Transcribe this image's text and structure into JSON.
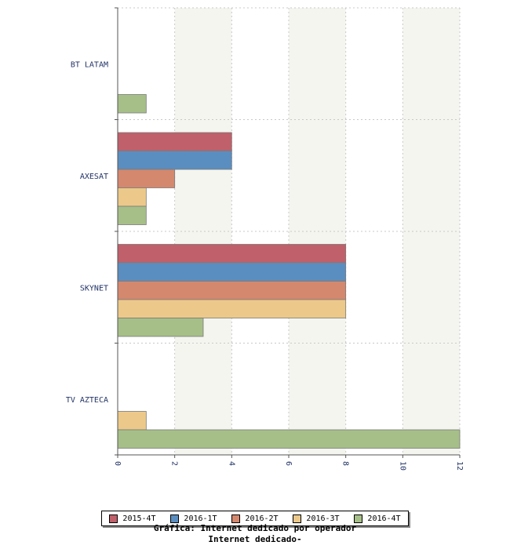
{
  "chart_data": {
    "type": "bar",
    "orientation": "horizontal",
    "title": "Gráfica: Internet dedicado por operador",
    "subtitle": "Internet dedicado-",
    "categories": [
      "BT LATAM",
      "AXESAT",
      "SKYNET",
      "TV AZTECA"
    ],
    "series": [
      {
        "name": "2015-4T",
        "color": "#c0606a",
        "values": [
          0,
          4,
          8,
          0
        ]
      },
      {
        "name": "2016-1T",
        "color": "#5b8ec0",
        "values": [
          0,
          4,
          8,
          0
        ]
      },
      {
        "name": "2016-2T",
        "color": "#d4886e",
        "values": [
          0,
          2,
          8,
          0
        ]
      },
      {
        "name": "2016-3T",
        "color": "#ecc98a",
        "values": [
          0,
          1,
          8,
          1
        ]
      },
      {
        "name": "2016-4T",
        "color": "#a6bf88",
        "values": [
          1,
          1,
          3,
          12
        ]
      }
    ],
    "xlim": [
      0,
      12
    ],
    "xticks": [
      "0",
      "2",
      "4",
      "6",
      "8",
      "10",
      "12"
    ],
    "grid": true,
    "legend": "bottom"
  }
}
